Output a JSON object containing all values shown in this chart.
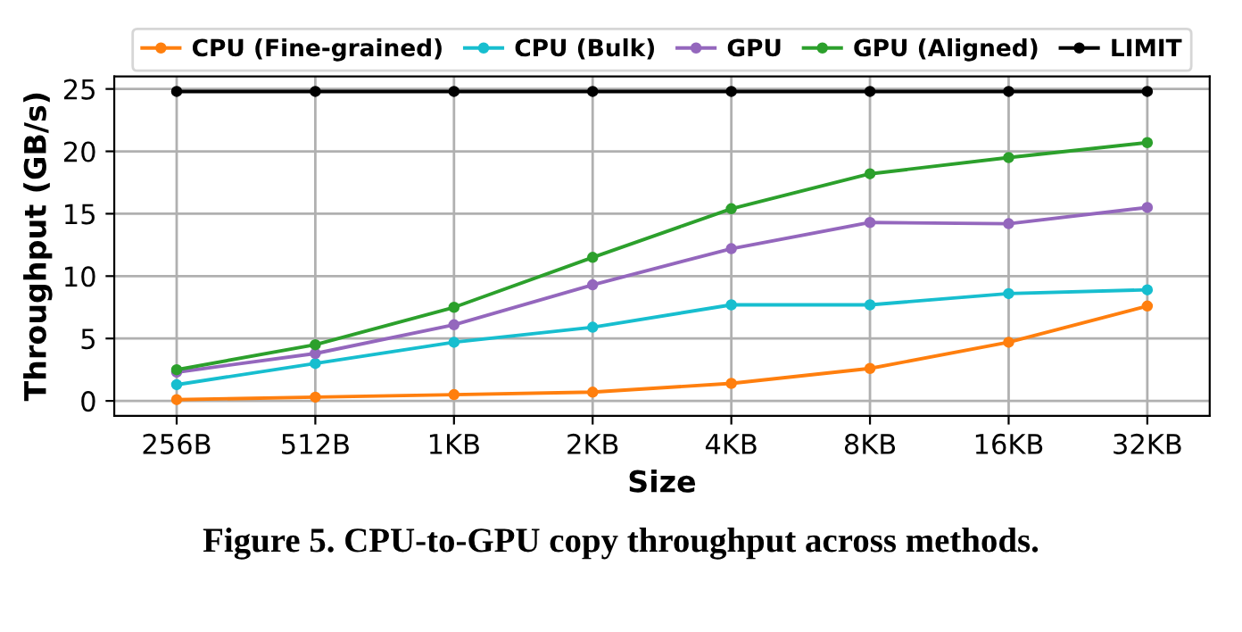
{
  "chart_data": {
    "type": "line",
    "xlabel": "Size",
    "ylabel": "Throughput (GB/s)",
    "categories": [
      "256B",
      "512B",
      "1KB",
      "2KB",
      "4KB",
      "8KB",
      "16KB",
      "32KB"
    ],
    "series": [
      {
        "name": "CPU (Fine-grained)",
        "color": "#ff7f0e",
        "values": [
          0.1,
          0.3,
          0.5,
          0.7,
          1.4,
          2.6,
          4.7,
          7.6
        ]
      },
      {
        "name": "CPU (Bulk)",
        "color": "#17becf",
        "values": [
          1.3,
          3.0,
          4.7,
          5.9,
          7.7,
          7.7,
          8.6,
          8.9
        ]
      },
      {
        "name": "GPU",
        "color": "#9467bd",
        "values": [
          2.3,
          3.8,
          6.1,
          9.3,
          12.2,
          14.3,
          14.2,
          15.5
        ]
      },
      {
        "name": "GPU (Aligned)",
        "color": "#2ca02c",
        "values": [
          2.5,
          4.5,
          7.5,
          11.5,
          15.4,
          18.2,
          19.5,
          20.7
        ]
      },
      {
        "name": "LIMIT",
        "color": "#000000",
        "values": [
          24.8,
          24.8,
          24.8,
          24.8,
          24.8,
          24.8,
          24.8,
          24.8
        ]
      }
    ],
    "ylim": [
      -1.2,
      26
    ],
    "yticks": [
      0,
      5,
      10,
      15,
      20,
      25
    ],
    "grid": true,
    "legend": "top",
    "marker": "circle",
    "line_style": "solid",
    "annotations": [
      "Figure 5. CPU-to-GPU copy throughput across methods."
    ]
  }
}
